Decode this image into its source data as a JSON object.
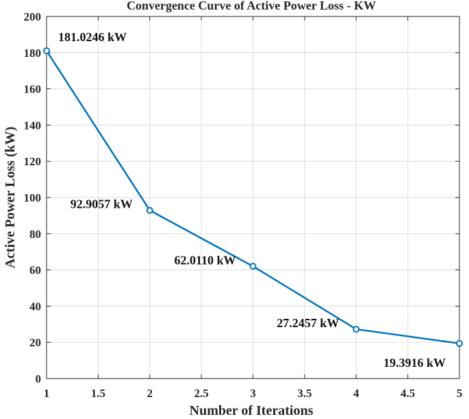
{
  "chart_data": {
    "type": "line",
    "title": "Convergence Curve of Active Power Loss - KW",
    "xlabel": "Number of Iterations",
    "ylabel": "Active Power Loss (kW)",
    "xlim": [
      1,
      5
    ],
    "ylim": [
      0,
      200
    ],
    "xticks": [
      1,
      1.5,
      2,
      2.5,
      3,
      3.5,
      4,
      4.5,
      5
    ],
    "xtick_labels": [
      "1",
      "1.5",
      "2",
      "2.5",
      "3",
      "3.5",
      "4",
      "4.5",
      "5"
    ],
    "yticks": [
      0,
      20,
      40,
      60,
      80,
      100,
      120,
      140,
      160,
      180,
      200
    ],
    "ytick_labels": [
      "0",
      "20",
      "40",
      "60",
      "80",
      "100",
      "120",
      "140",
      "160",
      "180",
      "200"
    ],
    "grid": true,
    "series": [
      {
        "name": "Active Power Loss",
        "color": "#0072BD",
        "marker": "circle",
        "x": [
          1,
          2,
          3,
          4,
          5
        ],
        "values": [
          181.0246,
          92.9057,
          62.011,
          27.2457,
          19.3916
        ]
      }
    ],
    "annotations": [
      {
        "text": "181.0246 kW",
        "x": 1,
        "y": 181.0246,
        "placement": "above-right"
      },
      {
        "text": "92.9057 kW",
        "x": 2,
        "y": 92.9057,
        "placement": "left"
      },
      {
        "text": "62.0110 kW",
        "x": 3,
        "y": 62.011,
        "placement": "left"
      },
      {
        "text": "27.2457 kW",
        "x": 4,
        "y": 27.2457,
        "placement": "left"
      },
      {
        "text": "19.3916 kW",
        "x": 5,
        "y": 19.3916,
        "placement": "below-left"
      }
    ]
  }
}
